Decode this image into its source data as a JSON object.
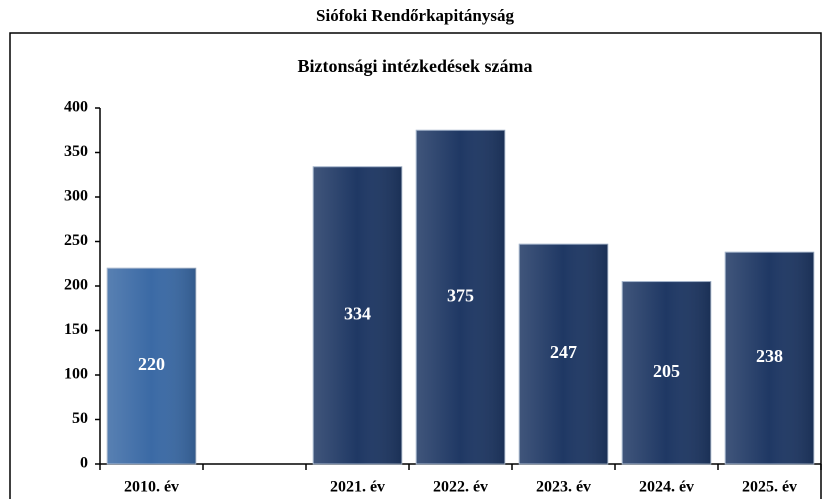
{
  "chart_data": {
    "type": "bar",
    "title": "Siófoki Rendőrkapitányság",
    "subtitle": "Biztonsági intézkedések száma",
    "categories": [
      "2010. év",
      null,
      "2021. év",
      "2022. év",
      "2023. év",
      "2024. év",
      "2025. év"
    ],
    "values": [
      220,
      null,
      334,
      375,
      247,
      205,
      238
    ],
    "colors": [
      "#3b6aa5",
      null,
      "#1f3864",
      "#1f3864",
      "#1f3864",
      "#1f3864",
      "#1f3864"
    ],
    "ylim": [
      0,
      400
    ],
    "yticks": [
      0,
      50,
      100,
      150,
      200,
      250,
      300,
      350,
      400
    ],
    "grid": false
  }
}
